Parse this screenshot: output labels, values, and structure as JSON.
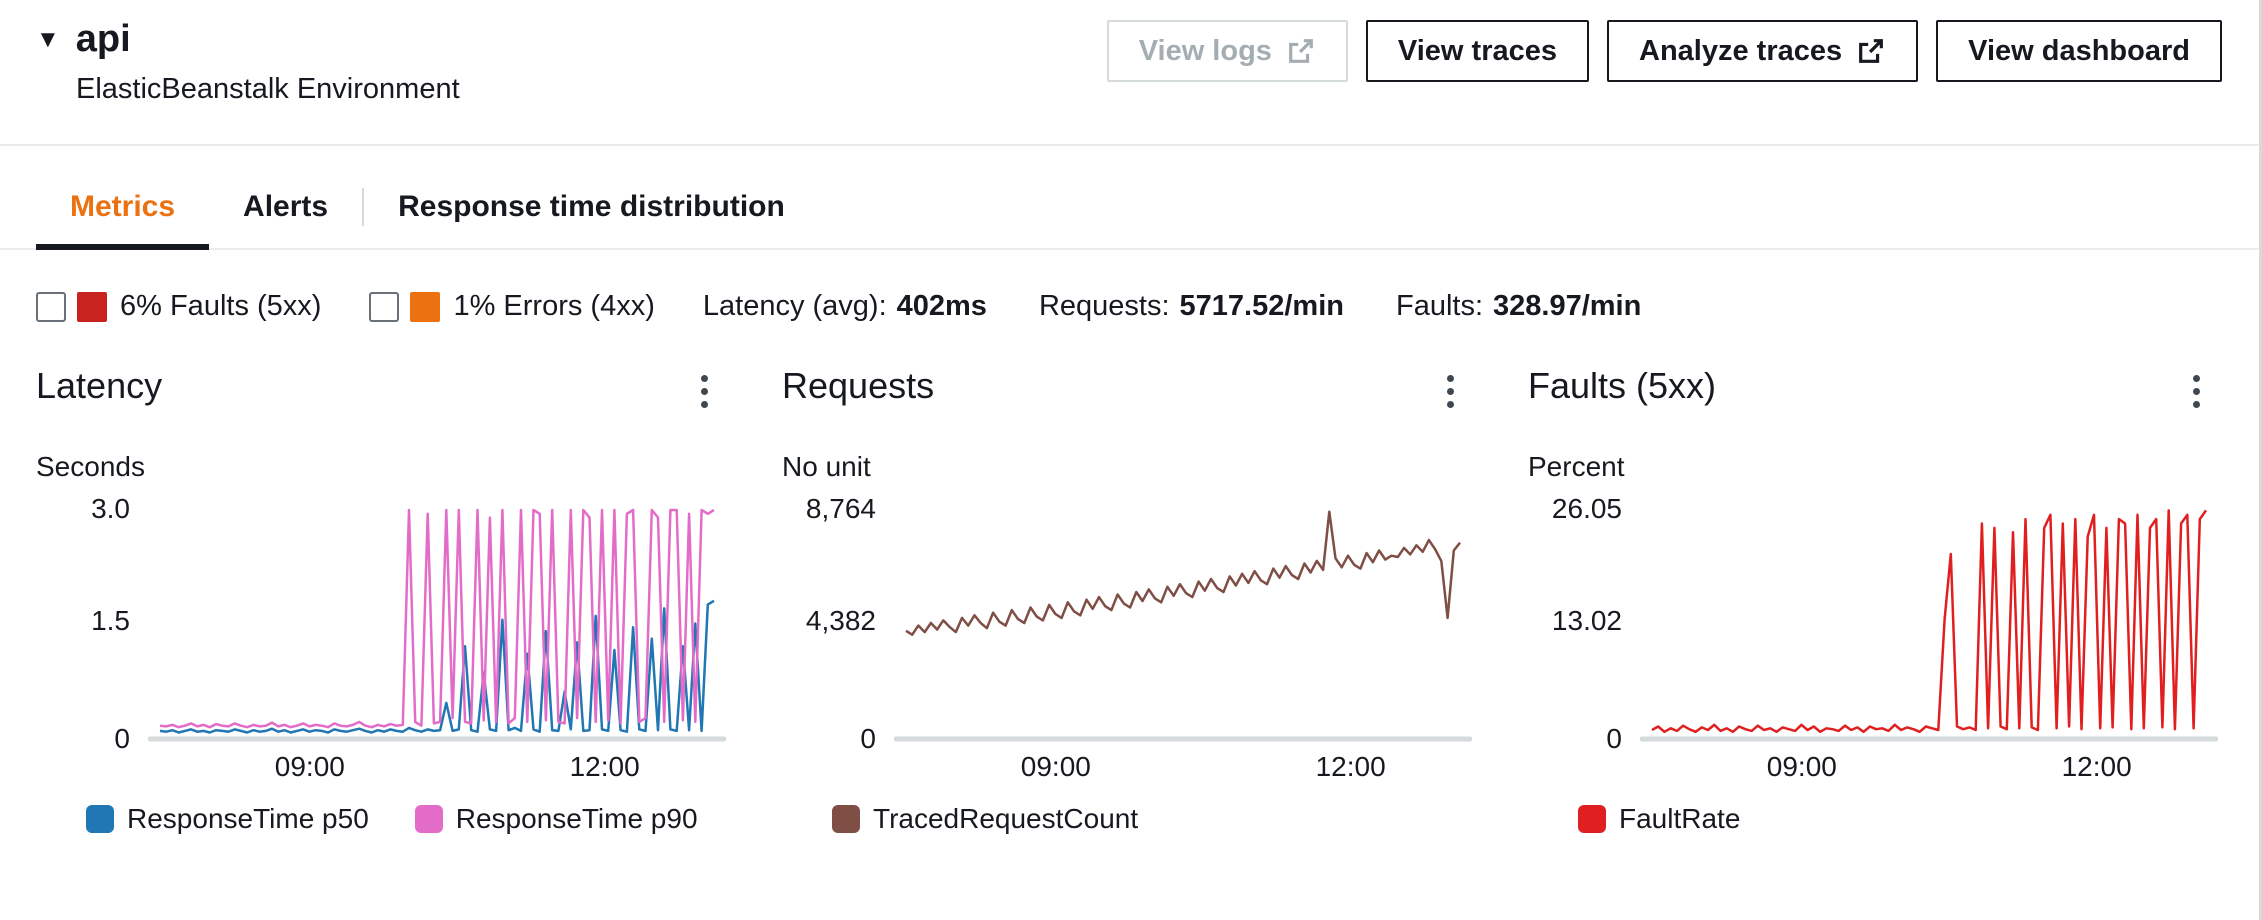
{
  "header": {
    "title": "api",
    "subtitle": "ElasticBeanstalk Environment",
    "buttons": [
      {
        "label": "View logs",
        "disabled": true,
        "external_icon": true
      },
      {
        "label": "View traces",
        "disabled": false,
        "external_icon": false
      },
      {
        "label": "Analyze traces",
        "disabled": false,
        "external_icon": true
      },
      {
        "label": "View dashboard",
        "disabled": false,
        "external_icon": false
      }
    ]
  },
  "tabs": [
    {
      "label": "Metrics",
      "active": true
    },
    {
      "label": "Alerts",
      "active": false
    },
    {
      "label": "Response time distribution",
      "active": false
    }
  ],
  "summary": {
    "faults_filter": {
      "label": "6% Faults (5xx)",
      "color": "#c7231f",
      "checked": false
    },
    "errors_filter": {
      "label": "1% Errors (4xx)",
      "color": "#ec7211",
      "checked": false
    },
    "latency": {
      "label": "Latency (avg):",
      "value": "402ms"
    },
    "requests": {
      "label": "Requests:",
      "value": "5717.52/min"
    },
    "faults": {
      "label": "Faults:",
      "value": "328.97/min"
    }
  },
  "chart_data": [
    {
      "type": "line",
      "title": "Latency",
      "unit": "Seconds",
      "ylim": [
        0,
        3.0
      ],
      "yticks": [
        "3.0",
        "1.5",
        "0"
      ],
      "xticks": [
        {
          "label": "09:00",
          "pos": 28
        },
        {
          "label": "12:00",
          "pos": 79
        }
      ],
      "legend_position": "bottom",
      "grid": false,
      "series": [
        {
          "name": "ResponseTime p50",
          "color": "#2077b4",
          "values": [
            0.08,
            0.07,
            0.09,
            0.06,
            0.08,
            0.1,
            0.07,
            0.08,
            0.06,
            0.09,
            0.08,
            0.07,
            0.1,
            0.08,
            0.06,
            0.09,
            0.07,
            0.08,
            0.11,
            0.07,
            0.09,
            0.06,
            0.08,
            0.1,
            0.07,
            0.09,
            0.08,
            0.06,
            0.1,
            0.08,
            0.07,
            0.09,
            0.11,
            0.08,
            0.06,
            0.09,
            0.07,
            0.1,
            0.08,
            0.07,
            0.12,
            0.09,
            0.07,
            0.1,
            0.08,
            0.09,
            0.45,
            0.08,
            0.1,
            1.2,
            0.09,
            0.07,
            0.85,
            0.1,
            0.08,
            1.55,
            0.09,
            0.12,
            0.08,
            1.1,
            0.1,
            0.07,
            1.4,
            0.09,
            0.08,
            0.6,
            0.1,
            1.25,
            0.08,
            0.09,
            1.6,
            0.1,
            0.08,
            1.15,
            0.09,
            0.07,
            1.45,
            0.1,
            0.08,
            1.3,
            0.09,
            1.7,
            0.1,
            0.08,
            1.2,
            0.09,
            1.5,
            0.08,
            1.75,
            1.8
          ]
        },
        {
          "name": "ResponseTime p90",
          "color": "#e36cc9",
          "values": [
            0.15,
            0.14,
            0.16,
            0.13,
            0.15,
            0.18,
            0.14,
            0.16,
            0.13,
            0.17,
            0.15,
            0.14,
            0.18,
            0.15,
            0.13,
            0.16,
            0.14,
            0.15,
            0.19,
            0.14,
            0.16,
            0.13,
            0.15,
            0.18,
            0.14,
            0.16,
            0.15,
            0.13,
            0.18,
            0.15,
            0.14,
            0.16,
            0.2,
            0.15,
            0.13,
            0.16,
            0.14,
            0.17,
            0.15,
            0.16,
            3.0,
            0.2,
            0.15,
            2.95,
            0.18,
            0.2,
            3.0,
            0.25,
            3.0,
            0.2,
            0.18,
            3.0,
            0.22,
            2.9,
            0.2,
            3.0,
            0.18,
            0.25,
            3.0,
            0.2,
            3.0,
            2.95,
            0.22,
            3.0,
            0.2,
            0.18,
            3.0,
            0.25,
            3.0,
            2.9,
            0.2,
            3.0,
            0.22,
            3.0,
            0.18,
            2.95,
            3.0,
            0.2,
            0.25,
            3.0,
            2.9,
            0.2,
            3.0,
            3.0,
            0.22,
            2.95,
            0.2,
            3.0,
            2.95,
            3.0
          ]
        }
      ]
    },
    {
      "type": "line",
      "title": "Requests",
      "unit": "No unit",
      "ylim": [
        0,
        8764
      ],
      "yticks": [
        "8,764",
        "4,382",
        "0"
      ],
      "xticks": [
        {
          "label": "09:00",
          "pos": 28
        },
        {
          "label": "12:00",
          "pos": 79
        }
      ],
      "legend_position": "bottom",
      "grid": false,
      "series": [
        {
          "name": "TracedRequestCount",
          "color": "#7f4e45",
          "values": [
            4100,
            3950,
            4300,
            4050,
            4400,
            4150,
            4500,
            4250,
            4050,
            4600,
            4300,
            4700,
            4400,
            4200,
            4800,
            4450,
            4300,
            4900,
            4550,
            4400,
            5000,
            4650,
            4500,
            5100,
            4750,
            4600,
            5200,
            4850,
            4700,
            5300,
            4950,
            5400,
            5050,
            4900,
            5500,
            5150,
            5000,
            5600,
            5250,
            5700,
            5350,
            5200,
            5800,
            5450,
            5900,
            5550,
            5400,
            6000,
            5650,
            6100,
            5750,
            5600,
            6200,
            5850,
            6300,
            5950,
            6400,
            6050,
            5900,
            6500,
            6150,
            6600,
            6250,
            6100,
            6700,
            6350,
            6800,
            6450,
            8700,
            6900,
            6550,
            7000,
            6650,
            6500,
            7100,
            6750,
            7200,
            6850,
            7000,
            6950,
            7300,
            7050,
            7400,
            7150,
            7600,
            7250,
            6800,
            4600,
            7200,
            7500
          ]
        }
      ]
    },
    {
      "type": "line",
      "title": "Faults (5xx)",
      "unit": "Percent",
      "ylim": [
        0,
        26.05
      ],
      "yticks": [
        "26.05",
        "13.02",
        "0"
      ],
      "xticks": [
        {
          "label": "09:00",
          "pos": 28
        },
        {
          "label": "12:00",
          "pos": 79
        }
      ],
      "legend_position": "bottom",
      "grid": false,
      "series": [
        {
          "name": "FaultRate",
          "color": "#e02020",
          "values": [
            0.8,
            1.2,
            0.6,
            1.0,
            0.7,
            1.3,
            0.9,
            0.6,
            1.1,
            0.8,
            1.4,
            0.7,
            1.0,
            0.6,
            1.2,
            0.9,
            0.7,
            1.3,
            0.8,
            1.0,
            0.6,
            1.1,
            0.9,
            0.7,
            1.4,
            0.8,
            1.2,
            0.6,
            1.0,
            0.9,
            0.7,
            1.3,
            0.8,
            1.1,
            0.6,
            1.2,
            0.9,
            1.0,
            0.7,
            1.4,
            0.8,
            1.1,
            0.9,
            0.6,
            1.2,
            1.0,
            0.8,
            13.5,
            21.0,
            1.2,
            0.9,
            1.1,
            0.8,
            24.5,
            1.0,
            24.0,
            1.2,
            0.9,
            23.5,
            1.0,
            25.0,
            1.1,
            0.8,
            24.0,
            25.5,
            1.0,
            24.5,
            1.2,
            25.0,
            0.9,
            23.0,
            25.5,
            1.0,
            24.0,
            1.1,
            25.0,
            24.5,
            0.9,
            25.5,
            1.0,
            24.0,
            25.0,
            1.1,
            26.0,
            0.9,
            24.5,
            25.5,
            1.0,
            25.0,
            26.0
          ]
        }
      ]
    }
  ]
}
